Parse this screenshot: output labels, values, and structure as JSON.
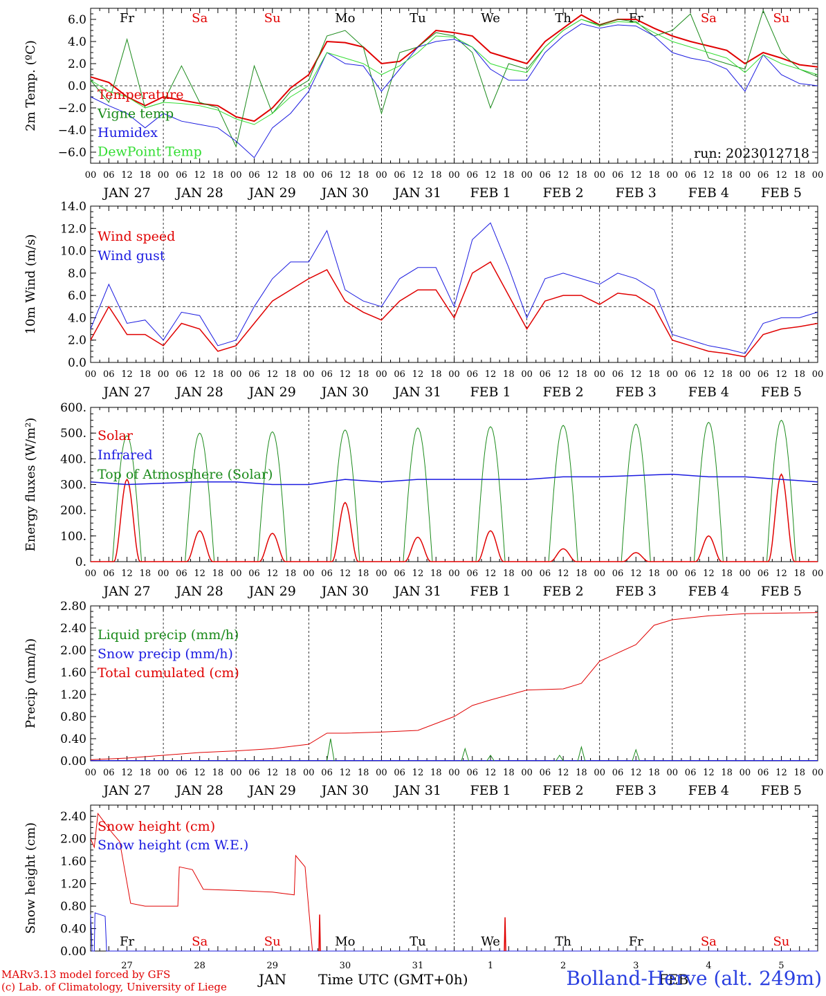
{
  "footer": {
    "model_line": "MARv3.13 model forced by GFS",
    "copyright_line": "(c) Lab. of Climatology, University of Liege",
    "xaxis_title": "Time UTC (GMT+0h)",
    "month_jan": "JAN",
    "month_feb": "FEB",
    "station": "Bolland-Herve (alt. 249m)"
  },
  "hours": [
    "00",
    "06",
    "12",
    "18"
  ],
  "date_labels": [
    "JAN 27",
    "JAN 28",
    "JAN 29",
    "JAN 30",
    "JAN 31",
    "FEB  1",
    "FEB  2",
    "FEB  3",
    "FEB  4",
    "FEB  5"
  ],
  "weekdays": [
    {
      "label": "Fr",
      "color": "#000000"
    },
    {
      "label": "Sa",
      "color": "#e00000"
    },
    {
      "label": "Su",
      "color": "#e00000"
    },
    {
      "label": "Mo",
      "color": "#000000"
    },
    {
      "label": "Tu",
      "color": "#000000"
    },
    {
      "label": "We",
      "color": "#000000"
    },
    {
      "label": "Th",
      "color": "#000000"
    },
    {
      "label": "Fr",
      "color": "#000000"
    },
    {
      "label": "Sa",
      "color": "#e00000"
    },
    {
      "label": "Su",
      "color": "#e00000"
    }
  ],
  "day_numbers": [
    "27",
    "28",
    "29",
    "30",
    "31",
    "1",
    "2",
    "3",
    "4",
    "5"
  ],
  "colors": {
    "red": "#e00000",
    "green": "#1a8a1a",
    "blue": "#1a1ae0",
    "lime": "#33dd33"
  },
  "chart_data": [
    {
      "type": "line",
      "ylabel": "2m Temp. (ºC)",
      "ylim": [
        -7,
        7
      ],
      "yticks": [
        "6.0",
        "4.0",
        "2.0",
        "0.0",
        "−2.0",
        "−4.0",
        "−6.0"
      ],
      "ytick_values": [
        6,
        4,
        2,
        0,
        -2,
        -4,
        -6
      ],
      "refline": 0,
      "annotation": "run: 2023012718",
      "legend": [
        {
          "name": "Temperature",
          "color": "#e00000"
        },
        {
          "name": "Vigne temp",
          "color": "#1a8a1a"
        },
        {
          "name": "Humidex",
          "color": "#1a1ae0"
        },
        {
          "name": "DewPoint Temp",
          "color": "#33dd33"
        }
      ],
      "x_days": [
        0,
        0.25,
        0.5,
        0.75,
        1,
        1.25,
        1.5,
        1.75,
        2,
        2.25,
        2.5,
        2.75,
        3,
        3.25,
        3.5,
        3.75,
        4,
        4.25,
        4.5,
        4.75,
        5,
        5.25,
        5.5,
        5.75,
        6,
        6.25,
        6.5,
        6.75,
        7,
        7.25,
        7.5,
        7.75,
        8,
        8.25,
        8.5,
        8.75,
        9,
        9.25,
        9.5,
        9.75,
        10
      ],
      "series": [
        {
          "name": "Temperature",
          "color": "#e00000",
          "width": 2,
          "values": [
            0.8,
            0.3,
            -1.0,
            -1.8,
            -1.0,
            -1.3,
            -1.6,
            -1.8,
            -2.8,
            -3.2,
            -2.0,
            -0.2,
            1.0,
            4.0,
            3.9,
            3.5,
            2.0,
            2.2,
            3.5,
            5.0,
            4.8,
            4.5,
            3.0,
            2.5,
            2.0,
            4.0,
            5.2,
            6.4,
            5.5,
            6.0,
            6.0,
            5.2,
            4.5,
            4.0,
            3.6,
            3.2,
            2.0,
            3.0,
            2.5,
            1.9,
            1.7
          ]
        },
        {
          "name": "Vigne temp",
          "color": "#1a8a1a",
          "width": 1,
          "values": [
            0.5,
            -1.5,
            4.2,
            -2.0,
            -1.5,
            1.8,
            -1.5,
            -2.0,
            -5.5,
            1.8,
            -2.5,
            -0.5,
            0.5,
            4.5,
            5.0,
            3.5,
            -2.5,
            3.0,
            3.5,
            4.8,
            4.5,
            3.0,
            -2.0,
            2.0,
            1.5,
            3.5,
            5.0,
            6.0,
            5.5,
            6.0,
            5.8,
            4.5,
            5.0,
            6.5,
            2.5,
            2.0,
            1.5,
            6.8,
            3.0,
            1.5,
            0.8
          ]
        },
        {
          "name": "Humidex",
          "color": "#1a1ae0",
          "width": 1,
          "values": [
            -1.0,
            -1.8,
            -2.5,
            -3.8,
            -2.5,
            -3.2,
            -3.5,
            -3.8,
            -5.0,
            -6.5,
            -3.8,
            -2.5,
            -0.5,
            3.0,
            2.0,
            1.8,
            -0.5,
            1.5,
            3.5,
            4.0,
            4.2,
            3.5,
            1.5,
            0.5,
            0.5,
            3.0,
            4.5,
            5.6,
            5.2,
            5.5,
            5.4,
            4.5,
            3.0,
            2.5,
            2.2,
            1.5,
            -0.5,
            2.8,
            1.0,
            0.2,
            0.0
          ]
        },
        {
          "name": "DewPoint Temp",
          "color": "#33dd33",
          "width": 1,
          "values": [
            0.5,
            -0.5,
            -1.0,
            -2.0,
            -1.5,
            -1.6,
            -1.8,
            -2.2,
            -3.0,
            -3.5,
            -2.5,
            -1.0,
            0.0,
            3.0,
            2.5,
            2.0,
            1.0,
            1.8,
            3.0,
            4.5,
            4.4,
            3.5,
            2.0,
            1.5,
            1.2,
            3.5,
            5.0,
            6.0,
            5.4,
            5.8,
            5.7,
            4.8,
            4.0,
            3.5,
            3.0,
            2.5,
            1.2,
            2.8,
            2.0,
            1.5,
            1.0
          ]
        }
      ]
    },
    {
      "type": "line",
      "ylabel": "10m Wind (m/s)",
      "ylim": [
        0,
        14
      ],
      "yticks": [
        "14.0",
        "12.0",
        "10.0",
        "8.0",
        "6.0",
        "4.0",
        "2.0",
        "0.0"
      ],
      "ytick_values": [
        14,
        12,
        10,
        8,
        6,
        4,
        2,
        0
      ],
      "refline": 5,
      "legend": [
        {
          "name": "Wind speed",
          "color": "#e00000"
        },
        {
          "name": "Wind gust",
          "color": "#1a1ae0"
        }
      ],
      "x_days": [
        0,
        0.25,
        0.5,
        0.75,
        1,
        1.25,
        1.5,
        1.75,
        2,
        2.25,
        2.5,
        2.75,
        3,
        3.25,
        3.5,
        3.75,
        4,
        4.25,
        4.5,
        4.75,
        5,
        5.25,
        5.5,
        5.75,
        6,
        6.25,
        6.5,
        6.75,
        7,
        7.25,
        7.5,
        7.75,
        8,
        8.25,
        8.5,
        8.75,
        9,
        9.25,
        9.5,
        9.75,
        10
      ],
      "series": [
        {
          "name": "Wind speed",
          "color": "#e00000",
          "width": 1.5,
          "values": [
            2.0,
            5.0,
            2.5,
            2.5,
            1.5,
            3.5,
            3.0,
            1.0,
            1.5,
            3.5,
            5.5,
            6.5,
            7.5,
            8.3,
            5.5,
            4.5,
            3.8,
            5.5,
            6.5,
            6.5,
            4.0,
            8.0,
            9.0,
            6.0,
            3.0,
            5.5,
            6.0,
            6.0,
            5.2,
            6.2,
            6.0,
            5.0,
            2.0,
            1.5,
            1.0,
            0.8,
            0.5,
            2.5,
            3.0,
            3.2,
            3.5
          ]
        },
        {
          "name": "Wind gust",
          "color": "#1a1ae0",
          "width": 1,
          "values": [
            3.0,
            7.0,
            3.5,
            3.8,
            2.0,
            4.5,
            4.2,
            1.5,
            2.0,
            5.0,
            7.5,
            9.0,
            9.0,
            11.8,
            6.5,
            5.5,
            5.0,
            7.5,
            8.5,
            8.5,
            5.0,
            11.0,
            12.5,
            8.5,
            4.0,
            7.5,
            8.0,
            7.5,
            7.0,
            8.0,
            7.5,
            6.5,
            2.5,
            2.0,
            1.5,
            1.2,
            0.8,
            3.5,
            4.0,
            4.0,
            4.5
          ]
        }
      ]
    },
    {
      "type": "line",
      "ylabel": "Energy fluxes (W/m²)",
      "ylim": [
        0,
        600
      ],
      "yticks": [
        "600.",
        "500.",
        "400.",
        "300.",
        "200.",
        "100.",
        "0."
      ],
      "ytick_values": [
        600,
        500,
        400,
        300,
        200,
        100,
        0
      ],
      "legend": [
        {
          "name": "Solar",
          "color": "#e00000"
        },
        {
          "name": "Infrared",
          "color": "#1a1ae0"
        },
        {
          "name": "Top of Atmosphere (Solar)",
          "color": "#1a8a1a"
        }
      ],
      "toa_peaks": [
        490,
        500,
        505,
        512,
        520,
        525,
        530,
        535,
        542,
        550
      ],
      "solar_peaks": [
        320,
        120,
        110,
        230,
        95,
        120,
        50,
        35,
        100,
        340
      ],
      "infrared": {
        "name": "Infrared",
        "values": [
          310,
          300,
          305,
          310,
          310,
          300,
          300,
          320,
          310,
          320,
          320,
          320,
          320,
          330,
          330,
          335,
          340,
          330,
          330,
          320,
          310
        ]
      }
    },
    {
      "type": "line",
      "ylabel": "Precip (mm/h)",
      "ylim": [
        0,
        2.8
      ],
      "yticks": [
        "2.80",
        "2.40",
        "2.00",
        "1.60",
        "1.20",
        "0.80",
        "0.40",
        "0.00"
      ],
      "ytick_values": [
        2.8,
        2.4,
        2.0,
        1.6,
        1.2,
        0.8,
        0.4,
        0.0
      ],
      "legend": [
        {
          "name": "Liquid precip (mm/h)",
          "color": "#1a8a1a"
        },
        {
          "name": "Snow precip (mm/h)",
          "color": "#1a1ae0"
        },
        {
          "name": "Total cumulated (cm)",
          "color": "#e00000"
        }
      ],
      "x_days": [
        0,
        0.5,
        1,
        1.5,
        2,
        2.5,
        3,
        3.25,
        3.5,
        4,
        4.5,
        5,
        5.25,
        5.5,
        6,
        6.5,
        6.75,
        7,
        7.5,
        7.75,
        8,
        8.5,
        9,
        10
      ],
      "series": [
        {
          "name": "Total cumulated (cm)",
          "color": "#e00000",
          "width": 1,
          "values": [
            0.02,
            0.05,
            0.1,
            0.15,
            0.18,
            0.22,
            0.3,
            0.5,
            0.5,
            0.52,
            0.55,
            0.8,
            1.0,
            1.1,
            1.28,
            1.3,
            1.4,
            1.8,
            2.1,
            2.45,
            2.55,
            2.62,
            2.66,
            2.68
          ]
        }
      ],
      "liquid_spikes": [
        [
          3.3,
          0.4
        ],
        [
          5.15,
          0.22
        ],
        [
          5.5,
          0.1
        ],
        [
          6.45,
          0.1
        ],
        [
          6.75,
          0.25
        ],
        [
          7.5,
          0.2
        ]
      ]
    },
    {
      "type": "line",
      "ylabel": "Snow height (cm)",
      "ylim": [
        0,
        2.6
      ],
      "yticks": [
        "2.40",
        "2.00",
        "1.60",
        "1.20",
        "0.80",
        "0.40",
        "0.00"
      ],
      "ytick_values": [
        2.4,
        2.0,
        1.6,
        1.2,
        0.8,
        0.4,
        0.0
      ],
      "legend": [
        {
          "name": "Snow height (cm)",
          "color": "#e00000"
        },
        {
          "name": "Snow height (cm W.E.)",
          "color": "#1a1ae0"
        }
      ],
      "x_days": [
        0,
        0.05,
        0.1,
        0.3,
        0.4,
        0.55,
        0.75,
        1.2,
        1.22,
        1.4,
        1.55,
        2.0,
        2.5,
        2.8,
        2.82,
        2.95,
        3.05,
        3.06,
        10
      ],
      "series": [
        {
          "name": "Snow height (cm)",
          "color": "#e00000",
          "width": 1,
          "values": [
            2.0,
            1.85,
            2.45,
            2.1,
            1.95,
            0.85,
            0.8,
            0.8,
            1.5,
            1.45,
            1.1,
            1.08,
            1.05,
            1.0,
            1.7,
            1.5,
            0.0,
            0.0,
            0.0
          ]
        }
      ],
      "we_values": [
        [
          0,
          0.65
        ],
        [
          0.02,
          0.0
        ],
        [
          0.05,
          0.0
        ],
        [
          0.06,
          0.68
        ],
        [
          0.2,
          0.62
        ],
        [
          0.22,
          0.0
        ],
        [
          10,
          0.0
        ]
      ],
      "spikes": [
        [
          3.15,
          0.65
        ],
        [
          5.7,
          0.6
        ]
      ]
    }
  ]
}
